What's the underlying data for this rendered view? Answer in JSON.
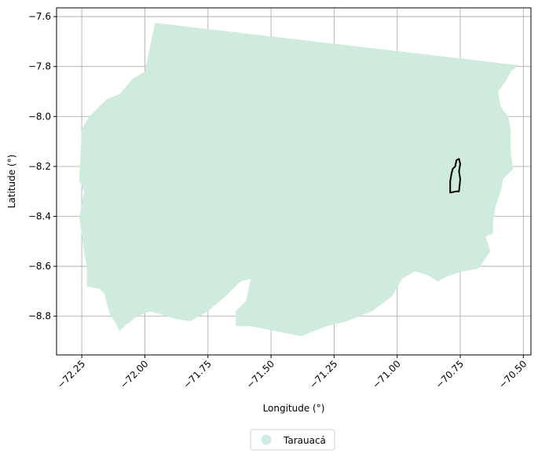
{
  "chart_data": {
    "type": "map",
    "title": "",
    "xlabel": "Longitude (°)",
    "ylabel": "Latitude (°)",
    "xlim": [
      -72.35,
      -70.47
    ],
    "ylim": [
      -8.955,
      -7.565
    ],
    "xticks": [
      -72.25,
      -72.0,
      -71.75,
      -71.5,
      -71.25,
      -71.0,
      -70.75,
      -70.5
    ],
    "xtick_labels": [
      "−72.25",
      "−72.00",
      "−71.75",
      "−71.50",
      "−71.25",
      "−71.00",
      "−70.75",
      "−70.50"
    ],
    "yticks": [
      -7.6,
      -7.8,
      -8.0,
      -8.2,
      -8.4,
      -8.6,
      -8.8
    ],
    "ytick_labels": [
      "−7.6",
      "−7.8",
      "−8.0",
      "−8.2",
      "−8.4",
      "−8.6",
      "−8.8"
    ],
    "grid": true,
    "legend_position": "bottom-center",
    "series": [
      {
        "name": "Tarauacá",
        "kind": "filled-region",
        "color": "#cfebdd",
        "outline": [
          [
            -71.96,
            -7.625
          ],
          [
            -70.52,
            -7.795
          ],
          [
            -70.55,
            -7.82
          ],
          [
            -70.57,
            -7.86
          ],
          [
            -70.6,
            -7.9
          ],
          [
            -70.59,
            -7.96
          ],
          [
            -70.56,
            -8.0
          ],
          [
            -70.55,
            -8.05
          ],
          [
            -70.55,
            -8.15
          ],
          [
            -70.54,
            -8.21
          ],
          [
            -70.58,
            -8.25
          ],
          [
            -70.59,
            -8.3
          ],
          [
            -70.61,
            -8.36
          ],
          [
            -70.62,
            -8.42
          ],
          [
            -70.62,
            -8.47
          ],
          [
            -70.65,
            -8.48
          ],
          [
            -70.63,
            -8.54
          ],
          [
            -70.68,
            -8.61
          ],
          [
            -70.74,
            -8.62
          ],
          [
            -70.8,
            -8.64
          ],
          [
            -70.84,
            -8.66
          ],
          [
            -70.88,
            -8.635
          ],
          [
            -70.93,
            -8.62
          ],
          [
            -70.98,
            -8.65
          ],
          [
            -71.02,
            -8.72
          ],
          [
            -71.1,
            -8.78
          ],
          [
            -71.2,
            -8.82
          ],
          [
            -71.28,
            -8.84
          ],
          [
            -71.38,
            -8.88
          ],
          [
            -71.48,
            -8.86
          ],
          [
            -71.58,
            -8.84
          ],
          [
            -71.64,
            -8.84
          ],
          [
            -71.64,
            -8.78
          ],
          [
            -71.6,
            -8.74
          ],
          [
            -71.58,
            -8.65
          ],
          [
            -71.62,
            -8.66
          ],
          [
            -71.68,
            -8.72
          ],
          [
            -71.75,
            -8.78
          ],
          [
            -71.82,
            -8.82
          ],
          [
            -71.88,
            -8.81
          ],
          [
            -71.98,
            -8.78
          ],
          [
            -72.03,
            -8.8
          ],
          [
            -72.08,
            -8.84
          ],
          [
            -72.1,
            -8.86
          ],
          [
            -72.12,
            -8.82
          ],
          [
            -72.14,
            -8.79
          ],
          [
            -72.16,
            -8.71
          ],
          [
            -72.18,
            -8.69
          ],
          [
            -72.23,
            -8.68
          ],
          [
            -72.23,
            -8.6
          ],
          [
            -72.24,
            -8.55
          ],
          [
            -72.26,
            -8.4
          ],
          [
            -72.24,
            -8.3
          ],
          [
            -72.26,
            -8.26
          ],
          [
            -72.25,
            -8.05
          ],
          [
            -72.22,
            -8.0
          ],
          [
            -72.15,
            -7.93
          ],
          [
            -72.1,
            -7.91
          ],
          [
            -72.05,
            -7.85
          ],
          [
            -72.0,
            -7.82
          ]
        ]
      },
      {
        "name": "",
        "kind": "outline",
        "color": "#000000",
        "outline": [
          [
            -70.79,
            -8.305
          ],
          [
            -70.79,
            -8.26
          ],
          [
            -70.785,
            -8.23
          ],
          [
            -70.78,
            -8.21
          ],
          [
            -70.77,
            -8.2
          ],
          [
            -70.765,
            -8.175
          ],
          [
            -70.755,
            -8.17
          ],
          [
            -70.75,
            -8.19
          ],
          [
            -70.755,
            -8.22
          ],
          [
            -70.75,
            -8.25
          ],
          [
            -70.752,
            -8.27
          ],
          [
            -70.755,
            -8.3
          ],
          [
            -70.765,
            -8.3
          ]
        ]
      }
    ]
  }
}
